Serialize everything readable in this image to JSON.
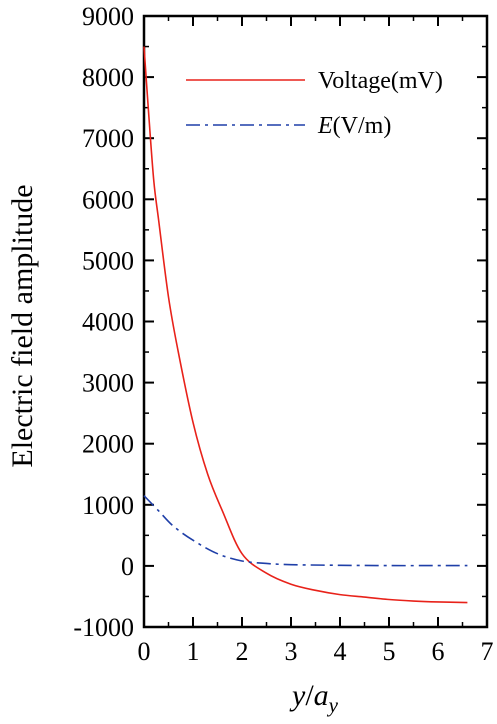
{
  "chart_data": {
    "type": "line",
    "xlabel": {
      "var": "y",
      "sep": "/",
      "base": "a",
      "sub": "y"
    },
    "ylabel": "Electric field amplitude",
    "xlim": [
      0,
      7
    ],
    "ylim": [
      -1000,
      9000
    ],
    "x_ticks": [
      "0",
      "1",
      "2",
      "3",
      "4",
      "5",
      "6",
      "7"
    ],
    "y_ticks": [
      "-1000",
      "0",
      "1000",
      "2000",
      "3000",
      "4000",
      "5000",
      "6000",
      "7000",
      "8000",
      "9000"
    ],
    "grid": false,
    "legend_position": "top-right",
    "series": [
      {
        "name": "Voltage(mV)",
        "color": "#e8221a",
        "style": "solid",
        "x": [
          0,
          0.1,
          0.2,
          0.3,
          0.5,
          0.7,
          1.0,
          1.3,
          1.6,
          2.0,
          2.5,
          3.0,
          3.5,
          4.0,
          4.5,
          5.0,
          5.5,
          6.0,
          6.6
        ],
        "y": [
          8500,
          7350,
          6300,
          5650,
          4400,
          3500,
          2350,
          1500,
          900,
          200,
          -120,
          -300,
          -400,
          -470,
          -510,
          -550,
          -575,
          -590,
          -600
        ]
      },
      {
        "name": "E(V/m)",
        "name_italic": "E",
        "name_rest": "(V/m)",
        "color": "#1f3fa8",
        "style": "dashdot",
        "x": [
          0,
          0.3,
          0.6,
          1.0,
          1.5,
          2.0,
          2.5,
          3.0,
          4.0,
          5.0,
          6.0,
          6.6
        ],
        "y": [
          1150,
          900,
          650,
          420,
          200,
          80,
          40,
          20,
          10,
          5,
          5,
          5
        ]
      }
    ]
  }
}
